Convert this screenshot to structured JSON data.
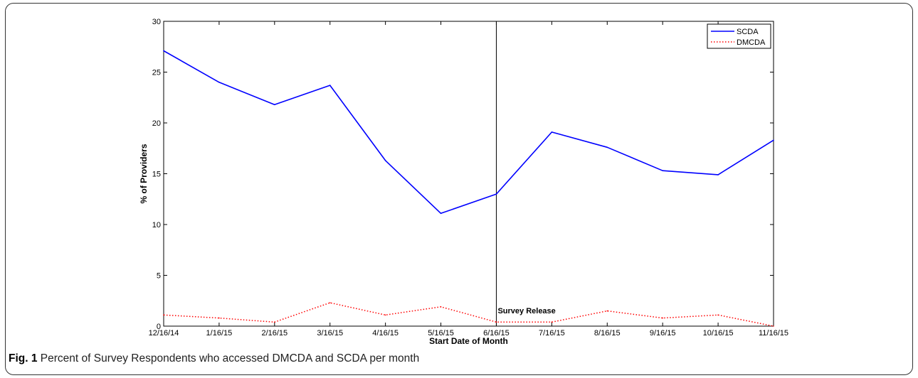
{
  "chart_data": {
    "type": "line",
    "categories": [
      "12/16/14",
      "1/16/15",
      "2/16/15",
      "3/16/15",
      "4/16/15",
      "5/16/15",
      "6/16/15",
      "7/16/15",
      "8/16/15",
      "9/16/15",
      "10/16/15",
      "11/16/15"
    ],
    "series": [
      {
        "name": "SCDA",
        "values": [
          27.1,
          24.0,
          21.8,
          23.7,
          16.3,
          11.1,
          13.0,
          19.1,
          17.6,
          15.3,
          14.9,
          18.3
        ],
        "color": "#0000ff",
        "style": "solid"
      },
      {
        "name": "DMCDA",
        "values": [
          1.1,
          0.8,
          0.4,
          2.3,
          1.1,
          1.9,
          0.4,
          0.4,
          1.5,
          0.8,
          1.1,
          0.0
        ],
        "color": "#ff0000",
        "style": "dotted"
      }
    ],
    "xlabel": "Start Date of Month",
    "ylabel": "% of Providers",
    "ylim": [
      0,
      30
    ],
    "yticks": [
      0,
      5,
      10,
      15,
      20,
      25,
      30
    ],
    "annotation": {
      "text": "Survey Release",
      "x_category": "6/16/15"
    },
    "legend_position": "top-right",
    "grid": false
  },
  "caption": {
    "label": "Fig. 1",
    "text": " Percent of Survey Respondents who accessed DMCDA and SCDA per month"
  }
}
